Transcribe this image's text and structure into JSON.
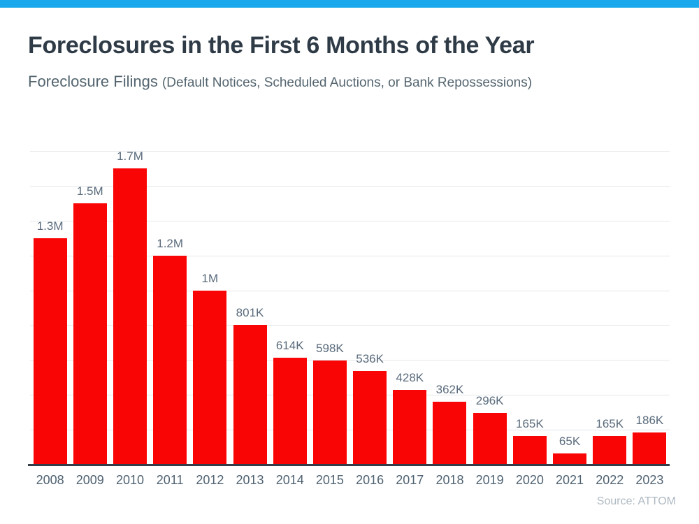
{
  "page": {
    "colors": {
      "accent_bar": "#19A8EB",
      "bar": "#FA0505",
      "title_text": "#2E3A45",
      "subtitle_text": "#54656F",
      "value_label_text": "#5A6B7C",
      "axis_label_text": "#4F6272",
      "gridline": "#E4E7E9",
      "baseline": "#333E48",
      "source_text": "#AEB9C2"
    }
  },
  "chart_data": {
    "type": "bar",
    "title": "Foreclosures in the First 6 Months of the Year",
    "subtitle": "Foreclosure Filings",
    "subtitle_note": "(Default Notices, Scheduled Auctions, or Bank Repossessions)",
    "categories": [
      "2008",
      "2009",
      "2010",
      "2011",
      "2012",
      "2013",
      "2014",
      "2015",
      "2016",
      "2017",
      "2018",
      "2019",
      "2020",
      "2021",
      "2022",
      "2023"
    ],
    "values": [
      1300000,
      1500000,
      1700000,
      1200000,
      1000000,
      801000,
      614000,
      598000,
      536000,
      428000,
      362000,
      296000,
      165000,
      65000,
      165000,
      186000
    ],
    "bar_labels": [
      "1.3M",
      "1.5M",
      "1.7M",
      "1.2M",
      "1M",
      "801K",
      "614K",
      "598K",
      "536K",
      "428K",
      "362K",
      "296K",
      "165K",
      "65K",
      "165K",
      "186K"
    ],
    "xlabel": "",
    "ylabel": "",
    "ylim": [
      0,
      1800000
    ],
    "gridline_interval": 200000,
    "grid": true,
    "legend": false,
    "source": "Source: ATTOM"
  }
}
